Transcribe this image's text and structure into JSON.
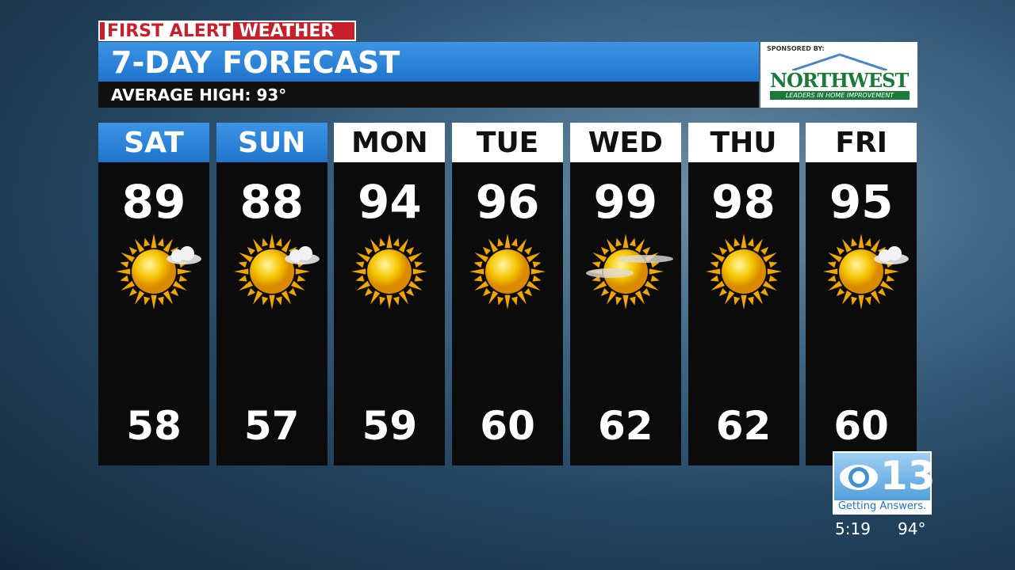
{
  "header": {
    "brand": "FIRST ALERT",
    "brand_suffix": "WEATHER",
    "title": "7-DAY FORECAST",
    "subtitle": "AVERAGE HIGH: 93°"
  },
  "sponsor": {
    "label": "SPONSORED BY:",
    "name": "NORTHWEST",
    "tagline": "LEADERS IN HOME IMPROVEMENT"
  },
  "days": [
    {
      "day": "SAT",
      "high": 89,
      "low": 58
    },
    {
      "day": "SUN",
      "high": 88,
      "low": 57
    },
    {
      "day": "MON",
      "high": 94,
      "low": 59
    },
    {
      "day": "TUE",
      "high": 96,
      "low": 60
    },
    {
      "day": "WED",
      "high": 99,
      "low": 62
    },
    {
      "day": "THU",
      "high": 98,
      "low": 62
    },
    {
      "day": "FRI",
      "high": 95,
      "low": 60
    }
  ],
  "station": {
    "number": "13",
    "slogan": "Getting Answers.",
    "time": "5:19",
    "temperature": "94°"
  }
}
